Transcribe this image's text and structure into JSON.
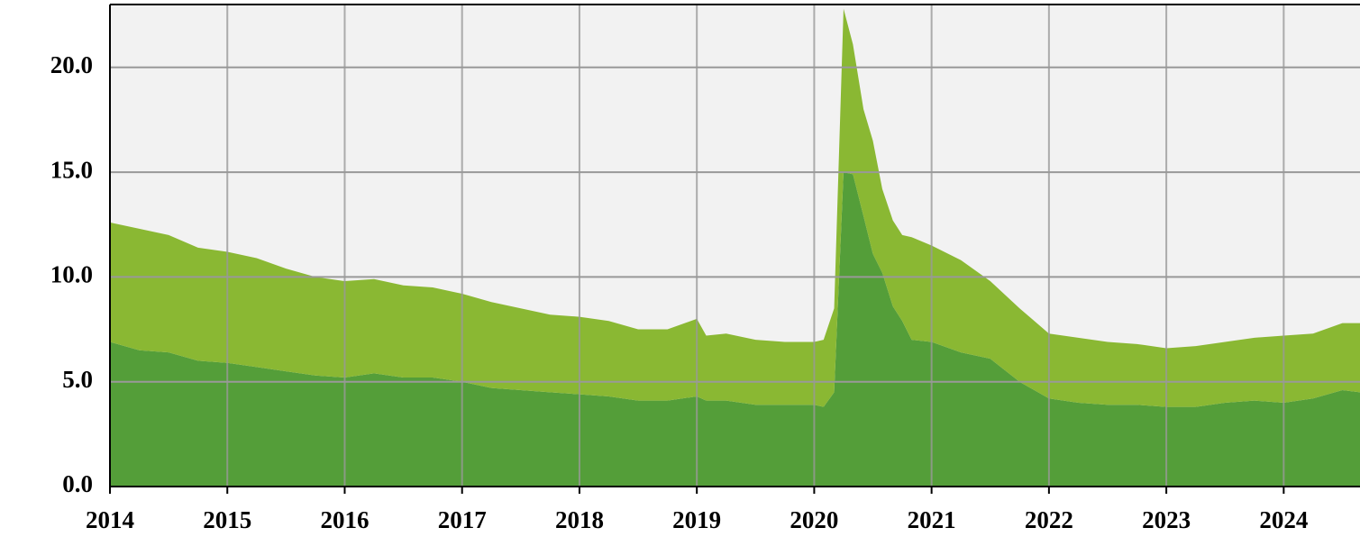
{
  "chart_data": {
    "type": "stacked_area",
    "x": [
      2014.0,
      2014.25,
      2014.5,
      2014.75,
      2015.0,
      2015.25,
      2015.5,
      2015.75,
      2016.0,
      2016.25,
      2016.5,
      2016.75,
      2017.0,
      2017.25,
      2017.5,
      2017.75,
      2018.0,
      2018.25,
      2018.5,
      2018.75,
      2019.0,
      2019.08,
      2019.25,
      2019.5,
      2019.75,
      2020.0,
      2020.08,
      2020.17,
      2020.25,
      2020.33,
      2020.42,
      2020.5,
      2020.58,
      2020.67,
      2020.75,
      2020.83,
      2021.0,
      2021.25,
      2021.5,
      2021.75,
      2022.0,
      2022.25,
      2022.5,
      2022.75,
      2023.0,
      2023.25,
      2023.5,
      2023.75,
      2024.0,
      2024.25,
      2024.5,
      2024.65
    ],
    "series": [
      {
        "color": "#549e39",
        "values": [
          6.9,
          6.5,
          6.4,
          6.0,
          5.9,
          5.7,
          5.5,
          5.3,
          5.2,
          5.4,
          5.2,
          5.2,
          5.0,
          4.7,
          4.6,
          4.5,
          4.4,
          4.3,
          4.1,
          4.1,
          4.3,
          4.1,
          4.1,
          3.9,
          3.9,
          3.9,
          3.8,
          4.5,
          15.0,
          14.9,
          12.9,
          11.1,
          10.2,
          8.6,
          7.9,
          7.0,
          6.9,
          6.4,
          6.1,
          5.0,
          4.2,
          4.0,
          3.9,
          3.9,
          3.8,
          3.8,
          4.0,
          4.1,
          4.0,
          4.2,
          4.6,
          4.5
        ]
      },
      {
        "color": "#8ab833",
        "values": [
          5.7,
          5.8,
          5.6,
          5.4,
          5.3,
          5.2,
          4.9,
          4.7,
          4.6,
          4.5,
          4.4,
          4.3,
          4.2,
          4.1,
          3.9,
          3.7,
          3.7,
          3.6,
          3.4,
          3.4,
          3.7,
          3.1,
          3.2,
          3.1,
          3.0,
          3.0,
          3.2,
          4.0,
          7.8,
          6.2,
          5.1,
          5.4,
          4.0,
          4.1,
          4.1,
          4.9,
          4.6,
          4.4,
          3.7,
          3.5,
          3.1,
          3.1,
          3.0,
          2.9,
          2.8,
          2.9,
          2.9,
          3.0,
          3.2,
          3.1,
          3.2,
          3.3
        ]
      }
    ],
    "xlim": [
      2014,
      2024.65
    ],
    "xticks": [
      2014,
      2015,
      2016,
      2017,
      2018,
      2019,
      2020,
      2021,
      2022,
      2023,
      2024
    ],
    "ylim": [
      0,
      23
    ],
    "yticks": [
      {
        "value": 0,
        "label": "0.0"
      },
      {
        "value": 5,
        "label": "5.0"
      },
      {
        "value": 10,
        "label": "10.0"
      },
      {
        "value": 15,
        "label": "15.0"
      },
      {
        "value": 20,
        "label": "20.0"
      }
    ],
    "grid": true
  }
}
